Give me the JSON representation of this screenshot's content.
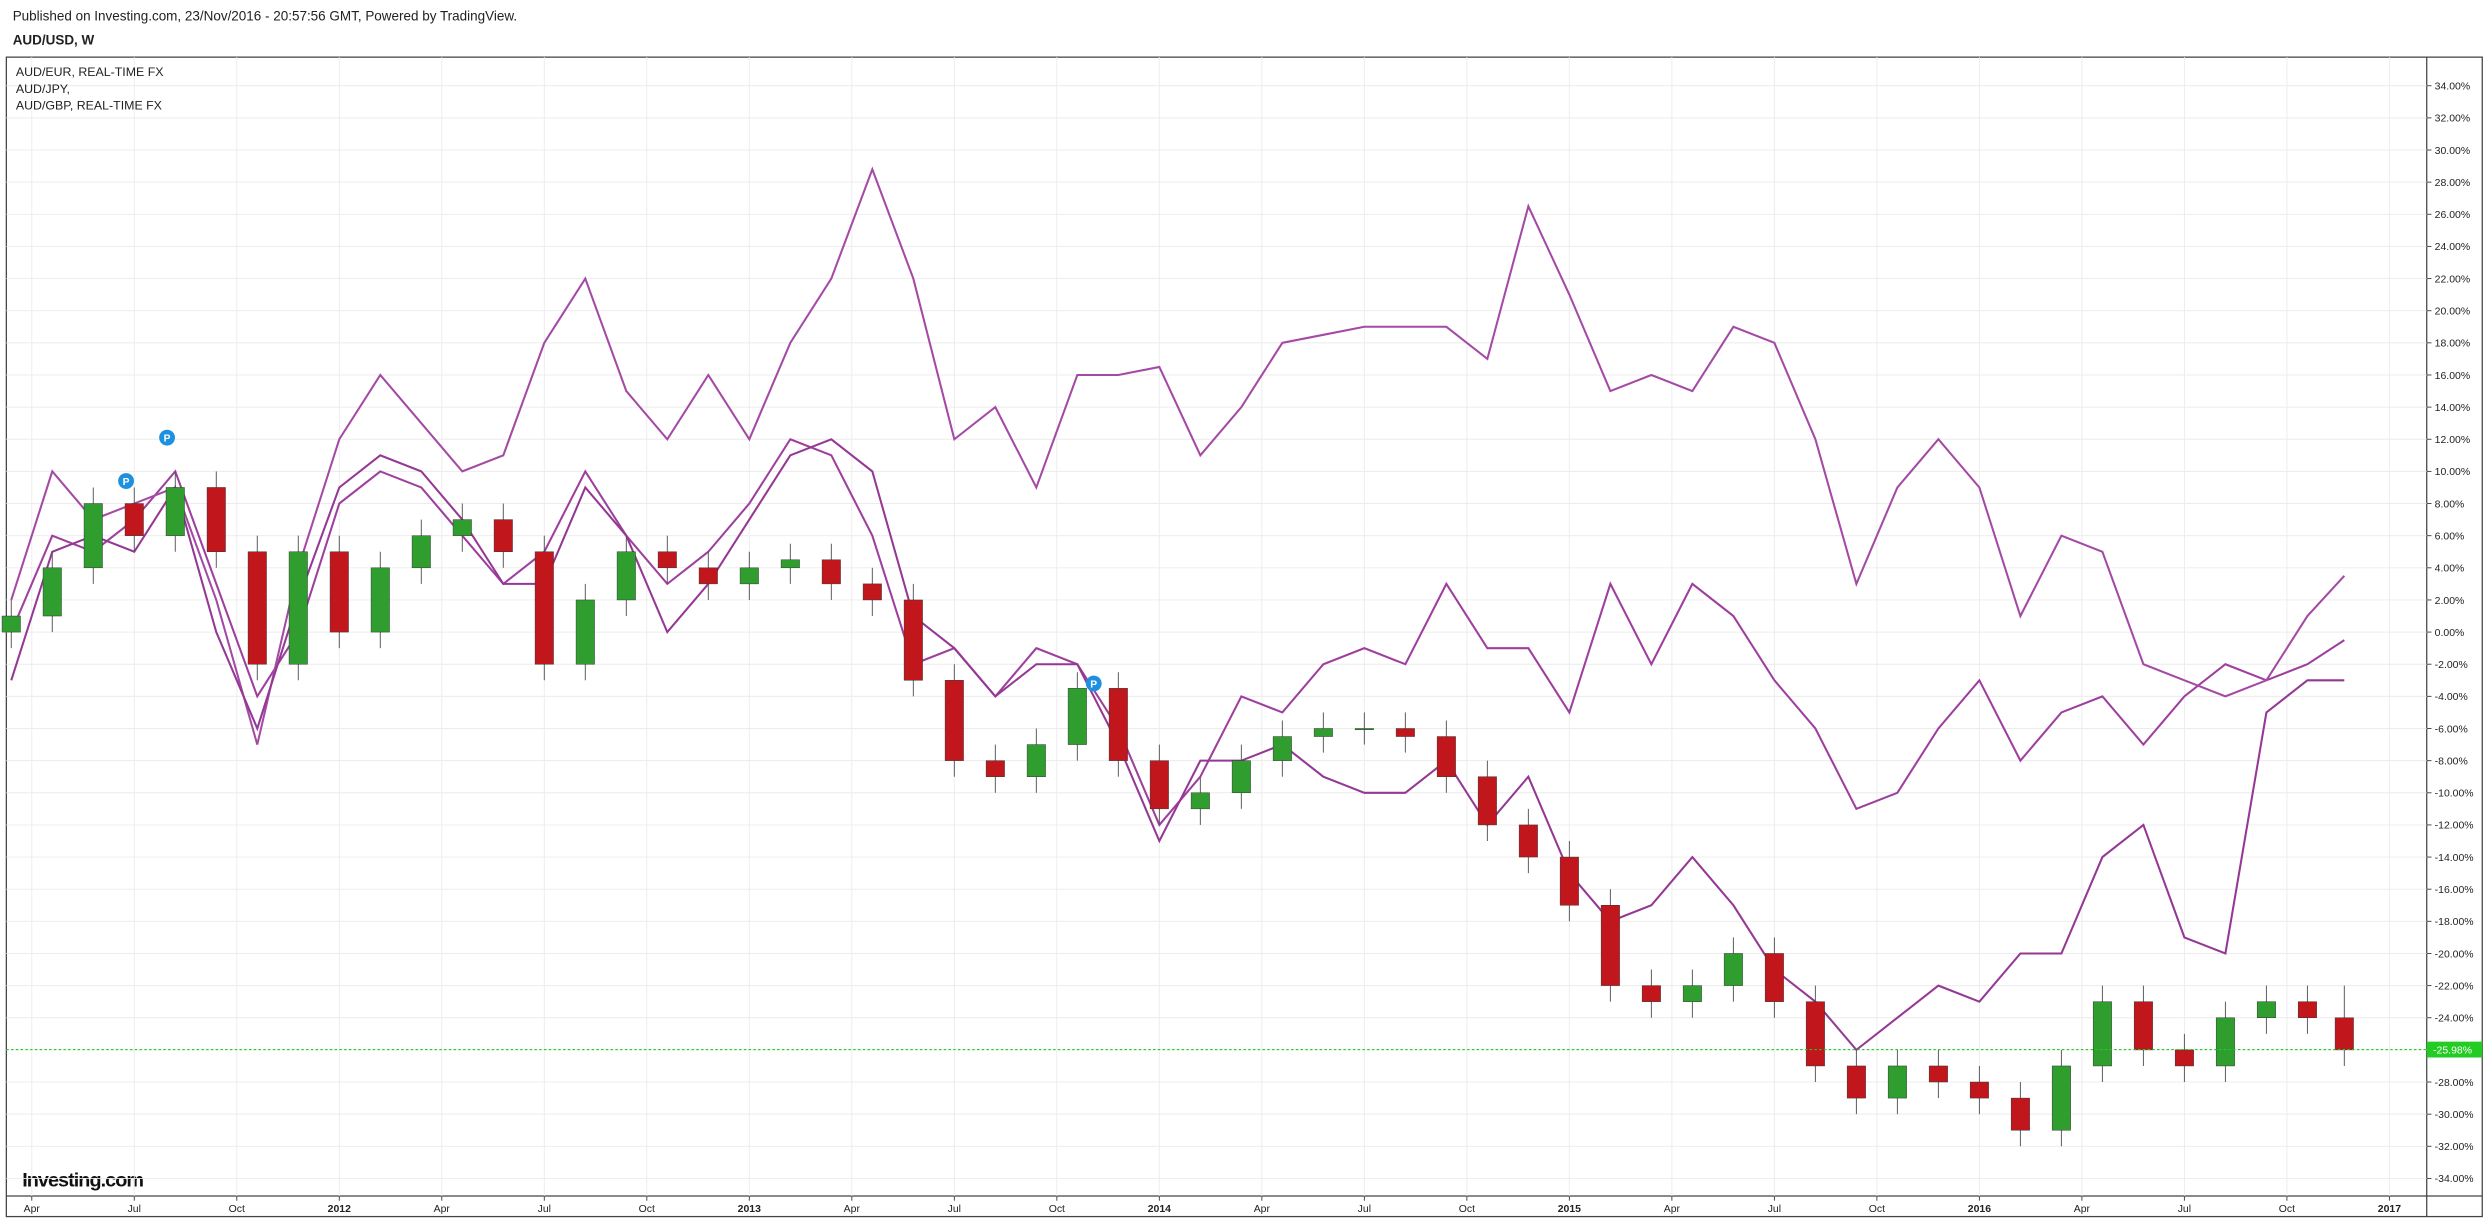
{
  "chart_data": {
    "type": "candlestick",
    "source": "Published on Investing.com, 23/Nov/2016 - 20:57:56 GMT, Powered by TradingView.",
    "title": "AUD/USD, W",
    "brand": "Investing.com",
    "up_color": "#2f9e2f",
    "down_color": "#c0161c",
    "grid": true,
    "xlim": [
      2011.188,
      2017.091
    ],
    "ylim": [
      -35.09,
      35.78
    ],
    "xticks": [
      {
        "value": 2011.25,
        "label": "Apr"
      },
      {
        "value": 2011.5,
        "label": "Jul"
      },
      {
        "value": 2011.75,
        "label": "Oct"
      },
      2012,
      {
        "value": 2012.25,
        "label": "Apr"
      },
      {
        "value": 2012.5,
        "label": "Jul"
      },
      {
        "value": 2012.75,
        "label": "Oct"
      },
      2013,
      {
        "value": 2013.25,
        "label": "Apr"
      },
      {
        "value": 2013.5,
        "label": "Jul"
      },
      {
        "value": 2013.75,
        "label": "Oct"
      },
      2014,
      {
        "value": 2014.25,
        "label": "Apr"
      },
      {
        "value": 2014.5,
        "label": "Jul"
      },
      {
        "value": 2014.75,
        "label": "Oct"
      },
      2015,
      {
        "value": 2015.25,
        "label": "Apr"
      },
      {
        "value": 2015.5,
        "label": "Jul"
      },
      {
        "value": 2015.75,
        "label": "Oct"
      },
      2016,
      {
        "value": 2016.25,
        "label": "Apr"
      },
      {
        "value": 2016.5,
        "label": "Jul"
      },
      {
        "value": 2016.75,
        "label": "Oct"
      },
      2017
    ],
    "yticks": [
      {
        "value": 34,
        "label": "34.00%"
      },
      {
        "value": 32,
        "label": "32.00%"
      },
      {
        "value": 30,
        "label": "30.00%"
      },
      {
        "value": 28,
        "label": "28.00%"
      },
      {
        "value": 26,
        "label": "26.00%"
      },
      {
        "value": 24,
        "label": "24.00%"
      },
      {
        "value": 22,
        "label": "22.00%"
      },
      {
        "value": 20,
        "label": "20.00%"
      },
      {
        "value": 18,
        "label": "18.00%"
      },
      {
        "value": 16,
        "label": "16.00%"
      },
      {
        "value": 14,
        "label": "14.00%"
      },
      {
        "value": 12,
        "label": "12.00%"
      },
      {
        "value": 10,
        "label": "10.00%"
      },
      {
        "value": 8,
        "label": "8.00%"
      },
      {
        "value": 6,
        "label": "6.00%"
      },
      {
        "value": 4,
        "label": "4.00%"
      },
      {
        "value": 2,
        "label": "2.00%"
      },
      {
        "value": 0,
        "label": "0.00%"
      },
      {
        "value": -2,
        "label": "-2.00%"
      },
      {
        "value": -4,
        "label": "-4.00%"
      },
      {
        "value": -6,
        "label": "-6.00%"
      },
      {
        "value": -8,
        "label": "-8.00%"
      },
      {
        "value": -10,
        "label": "-10.00%"
      },
      {
        "value": -12,
        "label": "-12.00%"
      },
      {
        "value": -14,
        "label": "-14.00%"
      },
      {
        "value": -16,
        "label": "-16.00%"
      },
      {
        "value": -18,
        "label": "-18.00%"
      },
      {
        "value": -20,
        "label": "-20.00%"
      },
      {
        "value": -22,
        "label": "-22.00%"
      },
      {
        "value": -24,
        "label": "-24.00%"
      },
      {
        "value": -26,
        "label": "-26.00%"
      },
      {
        "value": -28,
        "label": "-28.00%"
      },
      {
        "value": -30,
        "label": "-30.00%"
      },
      {
        "value": -32,
        "label": "-32.00%"
      },
      {
        "value": -34,
        "label": "-34.00%"
      }
    ],
    "last_price": {
      "value": -25.98,
      "label": "-25.98%",
      "color": "#22cc22"
    },
    "x": [
      2011.2,
      2011.3,
      2011.4,
      2011.5,
      2011.6,
      2011.7,
      2011.8,
      2011.9,
      2012.0,
      2012.1,
      2012.2,
      2012.3,
      2012.4,
      2012.5,
      2012.6,
      2012.7,
      2012.8,
      2012.9,
      2013.0,
      2013.1,
      2013.2,
      2013.3,
      2013.4,
      2013.5,
      2013.6,
      2013.7,
      2013.8,
      2013.9,
      2014.0,
      2014.1,
      2014.2,
      2014.3,
      2014.4,
      2014.5,
      2014.6,
      2014.7,
      2014.8,
      2014.9,
      2015.0,
      2015.1,
      2015.2,
      2015.3,
      2015.4,
      2015.5,
      2015.6,
      2015.7,
      2015.8,
      2015.9,
      2016.0,
      2016.1,
      2016.2,
      2016.3,
      2016.4,
      2016.5,
      2016.6,
      2016.7,
      2016.8,
      2016.89
    ],
    "open": [
      0,
      1,
      4,
      8,
      6,
      9,
      5,
      -2,
      5,
      0,
      4,
      6,
      7,
      5,
      -2,
      2,
      5,
      4,
      3,
      4,
      4.5,
      3,
      2,
      -3,
      -8,
      -9,
      -7,
      -3.5,
      -8,
      -11,
      -10,
      -8,
      -6.5,
      -6,
      -6,
      -6.5,
      -9,
      -12,
      -14,
      -17,
      -22,
      -23,
      -22,
      -20,
      -23,
      -27,
      -29,
      -27,
      -28,
      -29,
      -31,
      -27,
      -23,
      -26,
      -27,
      -24,
      -23,
      -24
    ],
    "high": [
      2,
      5,
      9,
      9,
      10,
      10,
      6,
      6,
      6,
      5,
      7,
      8,
      8,
      6,
      3,
      6,
      6,
      5,
      5,
      5.5,
      5.5,
      4,
      3,
      -2,
      -7,
      -6,
      -2.5,
      -2.5,
      -7,
      -9,
      -7,
      -5.5,
      -5,
      -5,
      -5,
      -5.5,
      -8,
      -11,
      -13,
      -16,
      -21,
      -21,
      -19,
      -19,
      -22,
      -26,
      -26,
      -26,
      -27,
      -28,
      -26,
      -22,
      -22,
      -25,
      -23,
      -22,
      -22,
      -22
    ],
    "low": [
      -1,
      0,
      3,
      5,
      5,
      4,
      -3,
      -3,
      -1,
      -1,
      3,
      5,
      4,
      -3,
      -3,
      1,
      3,
      2,
      2,
      3,
      2,
      1,
      -4,
      -9,
      -10,
      -10,
      -8,
      -9,
      -12,
      -12,
      -11,
      -9,
      -7.5,
      -7,
      -7.5,
      -10,
      -13,
      -15,
      -18,
      -23,
      -24,
      -24,
      -23,
      -24,
      -28,
      -30,
      -30,
      -29,
      -30,
      -32,
      -32,
      -28,
      -27,
      -28,
      -28,
      -25,
      -25,
      -27
    ],
    "close": [
      1,
      4,
      8,
      6,
      9,
      5,
      -2,
      5,
      0,
      4,
      6,
      7,
      5,
      -2,
      2,
      5,
      4,
      3,
      4,
      4.5,
      3,
      2,
      -3,
      -8,
      -9,
      -7,
      -3.5,
      -8,
      -11,
      -10,
      -8,
      -6.5,
      -6,
      -6,
      -6.5,
      -9,
      -12,
      -14,
      -17,
      -22,
      -23,
      -22,
      -20,
      -23,
      -27,
      -29,
      -27,
      -28,
      -29,
      -31,
      -27,
      -23,
      -26,
      -27,
      -24,
      -23,
      -24,
      -26
    ],
    "series": [
      {
        "name": "AUD/EUR, REAL-TIME FX",
        "color": "#9e3f9e",
        "values": [
          0,
          6,
          5,
          7,
          10,
          3,
          -4,
          0,
          8,
          10,
          9,
          6,
          3,
          5,
          10,
          6,
          3,
          5,
          8,
          12,
          11,
          6,
          -2,
          -1,
          -4,
          -1,
          -2,
          -6,
          -12,
          -9,
          -4,
          -5,
          -2,
          -1,
          -2,
          3,
          -1,
          -1,
          -5,
          3,
          -2,
          3,
          1,
          -3,
          -6,
          -11,
          -10,
          -6,
          -3,
          -8,
          -5,
          -4,
          -7,
          -4,
          -2,
          -3,
          -2,
          -0.5
        ]
      },
      {
        "name": "AUD/JPY,",
        "color": "#a44aa4",
        "values": [
          2,
          10,
          7,
          8,
          9,
          2,
          -7,
          4,
          12,
          16,
          13,
          10,
          11,
          18,
          22,
          15,
          12,
          16,
          12,
          18,
          22,
          28.8,
          22,
          12,
          14,
          9,
          16,
          16,
          16.5,
          11,
          14,
          18,
          18.5,
          19,
          19,
          19,
          17,
          26.5,
          21,
          15,
          16,
          15,
          19,
          18,
          12,
          3,
          9,
          12,
          9,
          1,
          6,
          5,
          -2,
          -3,
          -4,
          -3,
          1,
          3.5
        ]
      },
      {
        "name": "AUD/GBP, REAL-TIME FX",
        "color": "#943894",
        "values": [
          -3,
          5,
          6,
          5,
          9,
          0,
          -6,
          2,
          9,
          11,
          10,
          7,
          3,
          3,
          9,
          6,
          0,
          3,
          7,
          11,
          12,
          10,
          1,
          -1,
          -4,
          -2,
          -2,
          -7,
          -13,
          -8,
          -8,
          -7,
          -9,
          -10,
          -10,
          -8,
          -12,
          -9,
          -15,
          -18,
          -17,
          -14,
          -17,
          -21,
          -23,
          -26,
          -24,
          -22,
          -23,
          -20,
          -20,
          -14,
          -12,
          -19,
          -20,
          -5,
          -3,
          -3
        ]
      }
    ],
    "event_markers": [
      {
        "x": 2011.48,
        "y": 9.4,
        "label": "P"
      },
      {
        "x": 2011.58,
        "y": 12.1,
        "label": "P"
      },
      {
        "x": 2013.84,
        "y": -3.2,
        "label": "P"
      }
    ]
  }
}
